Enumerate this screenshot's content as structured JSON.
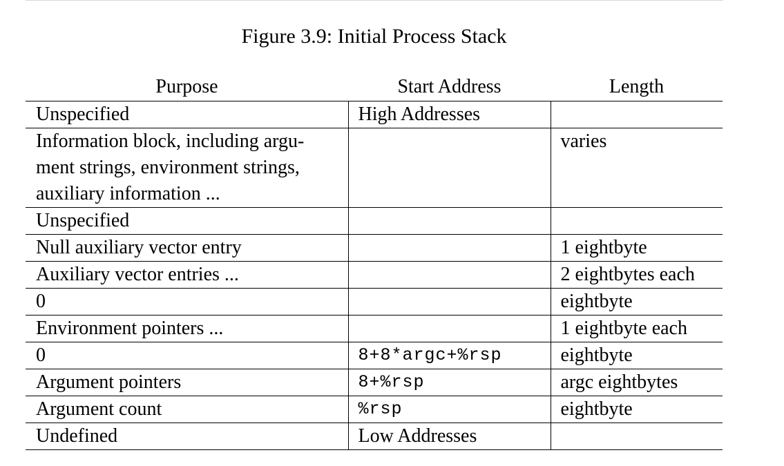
{
  "caption": "Figure 3.9: Initial Process Stack",
  "table": {
    "headers": [
      "Purpose",
      "Start Address",
      "Length"
    ],
    "rows": [
      {
        "purpose": "Unspecified",
        "start": "High Addresses",
        "start_mono": false,
        "length": ""
      },
      {
        "purpose_lines": [
          "Information block, including argu-",
          "ment strings, environment strings,",
          "auxiliary information ..."
        ],
        "start": "",
        "start_mono": false,
        "length": "varies"
      },
      {
        "purpose": "Unspecified",
        "start": "",
        "start_mono": false,
        "length": ""
      },
      {
        "purpose": "Null auxiliary vector entry",
        "start": "",
        "start_mono": false,
        "length": "1 eightbyte"
      },
      {
        "purpose": "Auxiliary vector entries ...",
        "start": "",
        "start_mono": false,
        "length": "2 eightbytes each"
      },
      {
        "purpose": "0",
        "start": "",
        "start_mono": false,
        "length": "eightbyte"
      },
      {
        "purpose": "Environment pointers ...",
        "start": "",
        "start_mono": false,
        "length": "1 eightbyte each"
      },
      {
        "purpose": "0",
        "start": "8+8*argc+%rsp",
        "start_mono": true,
        "length": "eightbyte"
      },
      {
        "purpose": "Argument pointers",
        "start": "8+%rsp",
        "start_mono": true,
        "length": "argc eightbytes"
      },
      {
        "purpose": "Argument count",
        "start": "%rsp",
        "start_mono": true,
        "length": "eightbyte"
      },
      {
        "purpose": "Undefined",
        "start": "Low Addresses",
        "start_mono": false,
        "length": ""
      }
    ]
  }
}
